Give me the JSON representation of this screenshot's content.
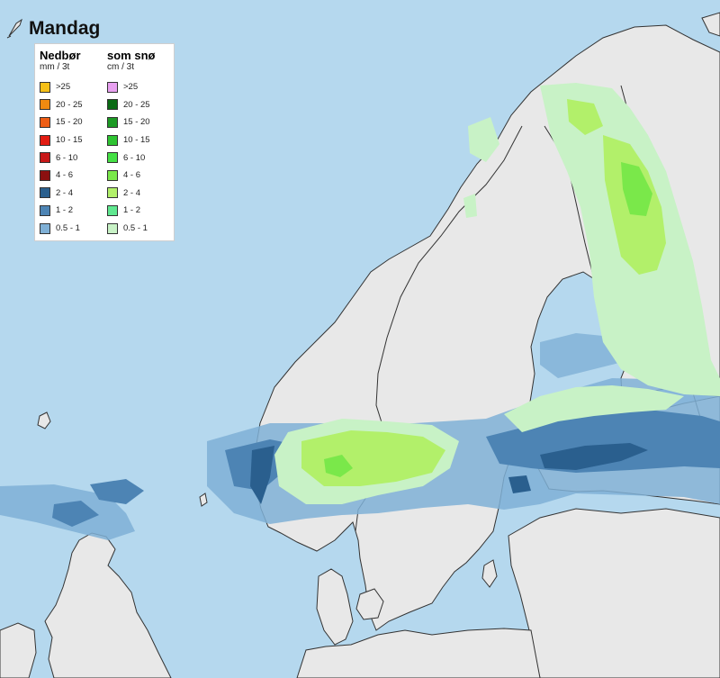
{
  "title": "Mandag",
  "title_icon": "snowflake-icon",
  "colors": {
    "sea": "#b5d8ee",
    "land": "#e8e8e8",
    "border": "#333333"
  },
  "legend": {
    "rain": {
      "heading": "Nedbør",
      "unit": "mm / 3t",
      "items": [
        {
          "label": ">25",
          "color": "#f5c018"
        },
        {
          "label": "20 - 25",
          "color": "#f08a10"
        },
        {
          "label": "15 - 20",
          "color": "#ee5d14"
        },
        {
          "label": "10 - 15",
          "color": "#e21c12"
        },
        {
          "label": "6 - 10",
          "color": "#c81818"
        },
        {
          "label": "4 - 6",
          "color": "#8c1010"
        },
        {
          "label": "2 - 4",
          "color": "#2a5f8e"
        },
        {
          "label": "1 - 2",
          "color": "#4d84b4"
        },
        {
          "label": "0.5 - 1",
          "color": "#7fb0d6"
        }
      ]
    },
    "snow": {
      "heading": "som snø",
      "unit": "cm / 3t",
      "items": [
        {
          "label": ">25",
          "color": "#e8a0f0"
        },
        {
          "label": "20 - 25",
          "color": "#0a6a14"
        },
        {
          "label": "15 - 20",
          "color": "#1c9a24"
        },
        {
          "label": "10 - 15",
          "color": "#2ec432"
        },
        {
          "label": "6 - 10",
          "color": "#44e044"
        },
        {
          "label": "4 - 6",
          "color": "#7ae84a"
        },
        {
          "label": "2 - 4",
          "color": "#b2f06a"
        },
        {
          "label": "1 - 2",
          "color": "#60e890"
        },
        {
          "label": "0.5 - 1",
          "color": "#c8f2c6"
        }
      ]
    }
  }
}
